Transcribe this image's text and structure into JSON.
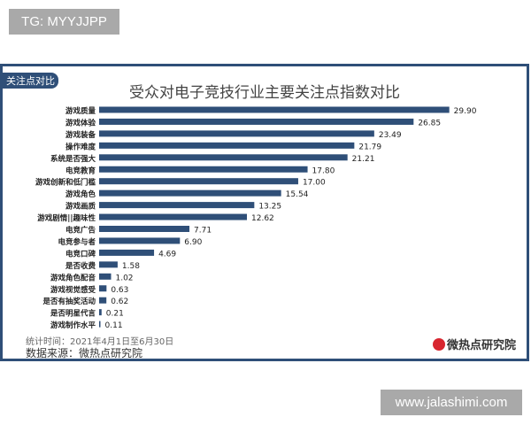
{
  "watermarks": {
    "top": "TG: MYYJJPP",
    "bottom": "www.jalashimi.com"
  },
  "badge": "关注点对比",
  "footer": {
    "period": "统计时间：2021年4月1日至6月30日",
    "source": "数据来源：微热点研究院",
    "logo_text": "微热点研究院"
  },
  "colors": {
    "bar": "#2f4f78",
    "frame": "#2f4f78"
  },
  "chart_data": {
    "type": "bar",
    "orientation": "horizontal",
    "title": "受众对电子竞技行业主要关注点指数对比",
    "categories": [
      "游戏质量",
      "游戏体验",
      "游戏装备",
      "操作难度",
      "系统是否强大",
      "电竞教育",
      "游戏创新和低门槛",
      "游戏角色",
      "游戏画质",
      "游戏剧情||趣味性",
      "电竞广告",
      "电竞参与者",
      "电竞口碑",
      "是否收费",
      "游戏角色配音",
      "游戏视觉感受",
      "是否有抽奖活动",
      "是否明星代言",
      "游戏制作水平"
    ],
    "values": [
      29.9,
      26.85,
      23.49,
      21.79,
      21.21,
      17.8,
      17.0,
      15.54,
      13.25,
      12.62,
      7.71,
      6.9,
      4.69,
      1.58,
      1.02,
      0.63,
      0.62,
      0.21,
      0.11
    ],
    "value_labels": [
      "29.90",
      "26.85",
      "23.49",
      "21.79",
      "21.21",
      "17.80",
      "17.00",
      "15.54",
      "13.25",
      "12.62",
      "7.71",
      "6.90",
      "4.69",
      "1.58",
      "1.02",
      "0.63",
      "0.62",
      "0.21",
      "0.11"
    ],
    "grid": false,
    "legend": "none"
  }
}
